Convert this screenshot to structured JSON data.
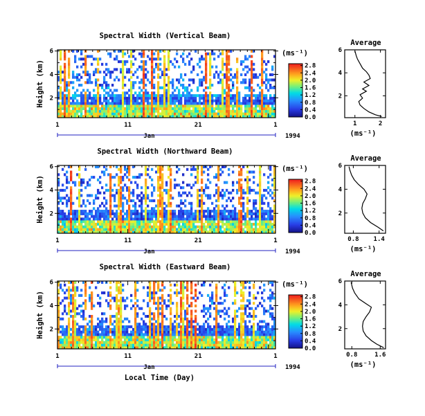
{
  "chart_data": [
    {
      "type": "heatmap",
      "title": "Spectral Width (Vertical Beam)",
      "ylabel": "Height (km)",
      "x_ticks": [
        "1",
        "11",
        "21",
        "1"
      ],
      "month_label": "Jan",
      "year_label": "1994",
      "xlabel": "",
      "yticks": [
        2,
        4,
        6
      ],
      "ylim": [
        0.3,
        6.1
      ],
      "colorbar_unit": "(ms⁻¹)",
      "colorbar_ticks": [
        "0.0",
        "0.4",
        "0.8",
        "1.2",
        "1.6",
        "2.0",
        "2.4",
        "2.8"
      ],
      "colorbar_range": [
        0,
        2.9
      ],
      "profile": {
        "title": "Average",
        "xlabel": "(ms⁻¹)",
        "xticks": [
          "1",
          "2"
        ],
        "xlim": [
          0.6,
          2.2
        ],
        "yticks": [
          2,
          4,
          6
        ],
        "ylim": [
          0.1,
          6.0
        ],
        "points": [
          [
            2.05,
            0.2
          ],
          [
            1.8,
            0.35
          ],
          [
            1.55,
            0.6
          ],
          [
            1.35,
            0.9
          ],
          [
            1.2,
            1.2
          ],
          [
            1.15,
            1.5
          ],
          [
            1.3,
            1.8
          ],
          [
            1.2,
            2.1
          ],
          [
            1.45,
            2.4
          ],
          [
            1.3,
            2.6
          ],
          [
            1.55,
            2.9
          ],
          [
            1.35,
            3.2
          ],
          [
            1.6,
            3.5
          ],
          [
            1.55,
            3.8
          ],
          [
            1.45,
            4.1
          ],
          [
            1.3,
            4.4
          ],
          [
            1.2,
            4.8
          ],
          [
            1.1,
            5.2
          ],
          [
            1.05,
            5.5
          ],
          [
            1.0,
            5.9
          ]
        ]
      }
    },
    {
      "type": "heatmap",
      "title": "Spectral Width (Northward Beam)",
      "ylabel": "Height (km)",
      "x_ticks": [
        "1",
        "11",
        "21",
        "1"
      ],
      "month_label": "Jan",
      "year_label": "1994",
      "xlabel": "",
      "yticks": [
        2,
        4,
        6
      ],
      "ylim": [
        0.3,
        6.1
      ],
      "colorbar_unit": "(ms⁻¹)",
      "colorbar_ticks": [
        "0.0",
        "0.4",
        "0.8",
        "1.2",
        "1.6",
        "2.0",
        "2.4",
        "2.8"
      ],
      "colorbar_range": [
        0,
        2.9
      ],
      "profile": {
        "title": "Average",
        "xlabel": "(ms⁻¹)",
        "xticks": [
          "0.8",
          "1.4"
        ],
        "xlim": [
          0.6,
          1.55
        ],
        "yticks": [
          2,
          4,
          6
        ],
        "ylim": [
          0.3,
          6.0
        ],
        "points": [
          [
            1.5,
            0.5
          ],
          [
            1.38,
            0.8
          ],
          [
            1.2,
            1.2
          ],
          [
            1.08,
            1.6
          ],
          [
            1.02,
            2.0
          ],
          [
            1.0,
            2.4
          ],
          [
            1.02,
            2.8
          ],
          [
            1.08,
            3.2
          ],
          [
            1.12,
            3.6
          ],
          [
            1.05,
            4.0
          ],
          [
            0.92,
            4.4
          ],
          [
            0.82,
            4.8
          ],
          [
            0.76,
            5.2
          ],
          [
            0.72,
            5.6
          ],
          [
            0.7,
            5.9
          ]
        ]
      }
    },
    {
      "type": "heatmap",
      "title": "Spectral Width (Eastward Beam)",
      "ylabel": "Height (km)",
      "x_ticks": [
        "1",
        "11",
        "21",
        "1"
      ],
      "month_label": "Jan",
      "year_label": "1994",
      "xlabel": "Local Time (Day)",
      "yticks": [
        2,
        4,
        6
      ],
      "ylim": [
        0.3,
        6.1
      ],
      "colorbar_unit": "(ms⁻¹)",
      "colorbar_ticks": [
        "0.0",
        "0.4",
        "0.8",
        "1.2",
        "1.6",
        "2.0",
        "2.4",
        "2.8"
      ],
      "colorbar_range": [
        0,
        2.9
      ],
      "profile": {
        "title": "Average",
        "xlabel": "(ms⁻¹)",
        "xticks": [
          "0.8",
          "1.6"
        ],
        "xlim": [
          0.6,
          1.75
        ],
        "yticks": [
          2,
          4,
          6
        ],
        "ylim": [
          0.3,
          6.0
        ],
        "points": [
          [
            1.7,
            0.4
          ],
          [
            1.5,
            0.7
          ],
          [
            1.35,
            1.0
          ],
          [
            1.2,
            1.4
          ],
          [
            1.12,
            1.8
          ],
          [
            1.1,
            2.2
          ],
          [
            1.12,
            2.6
          ],
          [
            1.2,
            3.0
          ],
          [
            1.3,
            3.4
          ],
          [
            1.35,
            3.8
          ],
          [
            1.2,
            4.1
          ],
          [
            1.0,
            4.5
          ],
          [
            0.88,
            5.0
          ],
          [
            0.82,
            5.4
          ],
          [
            0.78,
            5.9
          ]
        ]
      }
    }
  ]
}
